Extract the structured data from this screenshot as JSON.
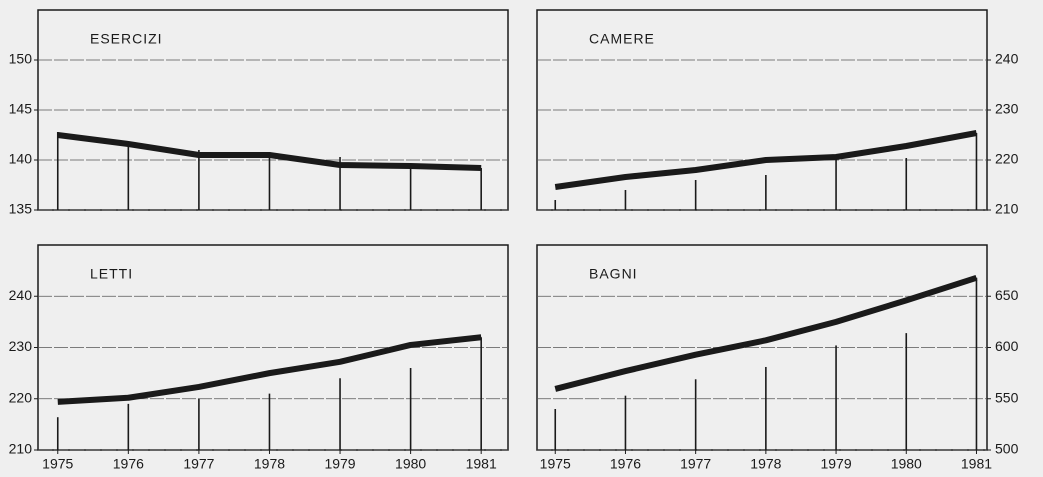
{
  "chart_data": [
    {
      "type": "line",
      "title": "ESERCIZI",
      "yaxis": "left",
      "x": [
        1975,
        1976,
        1977,
        1978,
        1979,
        1980,
        1981
      ],
      "xlim": [
        1974.72,
        1981.38
      ],
      "ylim": [
        135,
        155
      ],
      "yticks": [
        135,
        140,
        145,
        150
      ],
      "grid": true,
      "series": [
        {
          "style": "line",
          "color": "#1a1a1a",
          "values": [
            142.5,
            141.6,
            140.5,
            140.5,
            139.5,
            139.4,
            139.2
          ]
        },
        {
          "style": "stem",
          "color": "#1a1a1a",
          "values": [
            142.8,
            141.5,
            141,
            140.8,
            140.3,
            139.5,
            139.2
          ]
        }
      ]
    },
    {
      "type": "line",
      "title": "CAMERE",
      "yaxis": "right",
      "x": [
        1975,
        1976,
        1977,
        1978,
        1979,
        1980,
        1981
      ],
      "xlim": [
        1974.74,
        1981.15
      ],
      "ylim": [
        210,
        250
      ],
      "yticks": [
        210,
        220,
        230,
        240
      ],
      "grid": true,
      "series": [
        {
          "style": "line",
          "color": "#1a1a1a",
          "values": [
            214.6,
            216.6,
            218,
            220,
            220.6,
            222.8,
            225.4
          ]
        },
        {
          "style": "stem",
          "color": "#1a1a1a",
          "values": [
            212,
            214,
            216,
            217,
            220.6,
            220.4,
            225.4
          ]
        }
      ]
    },
    {
      "type": "line",
      "title": "LETTI",
      "yaxis": "left",
      "x": [
        1975,
        1976,
        1977,
        1978,
        1979,
        1980,
        1981
      ],
      "xlim": [
        1974.72,
        1981.38
      ],
      "xticks": [
        1975,
        1976,
        1977,
        1978,
        1979,
        1980,
        1981
      ],
      "ylim": [
        210,
        250
      ],
      "yticks": [
        210,
        220,
        230,
        240
      ],
      "grid": true,
      "series": [
        {
          "style": "line",
          "color": "#1a1a1a",
          "values": [
            219.4,
            220.2,
            222.3,
            225,
            227.2,
            230.5,
            232
          ]
        },
        {
          "style": "stem",
          "color": "#1a1a1a",
          "values": [
            216.4,
            219,
            220,
            221,
            224,
            226,
            232
          ]
        }
      ]
    },
    {
      "type": "line",
      "title": "BAGNI",
      "yaxis": "right",
      "x": [
        1975,
        1976,
        1977,
        1978,
        1979,
        1980,
        1981
      ],
      "xlim": [
        1974.74,
        1981.15
      ],
      "xticks": [
        1975,
        1976,
        1977,
        1978,
        1979,
        1980,
        1981
      ],
      "ylim": [
        500,
        700
      ],
      "yticks": [
        500,
        550,
        600,
        650
      ],
      "grid": true,
      "series": [
        {
          "style": "line",
          "color": "#1a1a1a",
          "values": [
            559.6,
            577,
            593,
            607,
            625,
            646,
            668
          ]
        },
        {
          "style": "stem",
          "color": "#1a1a1a",
          "values": [
            540,
            553,
            569,
            581,
            602,
            614,
            668
          ]
        }
      ]
    }
  ]
}
